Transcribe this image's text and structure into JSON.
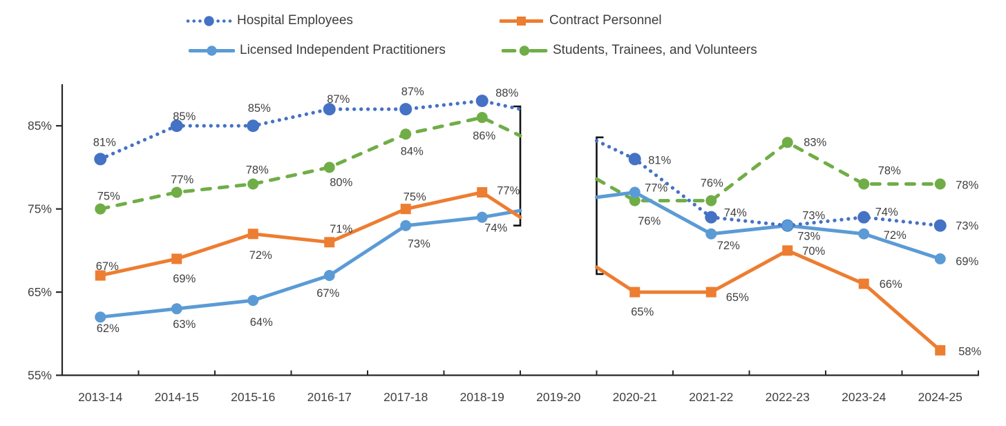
{
  "legend": {
    "items": [
      {
        "label": "Hospital Employees"
      },
      {
        "label": "Contract Personnel"
      },
      {
        "label": "Licensed Independent Practitioners"
      },
      {
        "label": "Students, Trainees, and Volunteers"
      }
    ]
  },
  "chart_data": {
    "type": "line",
    "title": "",
    "legend_position": "top",
    "grid": false,
    "categories": [
      "2013-14",
      "2014-15",
      "2015-16",
      "2016-17",
      "2017-18",
      "2018-19",
      "2019-20",
      "2020-21",
      "2021-22",
      "2022-23",
      "2023-24",
      "2024-25"
    ],
    "y_axis": {
      "tick_labels": [
        "85%",
        "75%",
        "65%",
        "55%"
      ],
      "tick_values": [
        85,
        75,
        65,
        55
      ],
      "range": [
        55,
        90
      ],
      "unit": "percent"
    },
    "data_break": {
      "category": "2019-20",
      "annotation": "square-brackets-marking-data-gap"
    },
    "series": [
      {
        "id": "hospital-employees",
        "name": "Hospital Employees",
        "color": "#4472C4",
        "line_style": "dotted",
        "marker": "circle",
        "values": [
          81,
          85,
          85,
          87,
          87,
          88,
          null,
          81,
          74,
          73,
          74,
          73
        ],
        "labels": [
          "81%",
          "85%",
          "85%",
          "87%",
          "87%",
          "88%",
          null,
          "81%",
          "74%",
          "73%",
          "74%",
          "73%"
        ],
        "label_offsets": [
          [
            6,
            -25
          ],
          [
            11,
            -14
          ],
          [
            9,
            -26
          ],
          [
            13,
            -15
          ],
          [
            10,
            -26
          ],
          [
            36,
            -12
          ],
          null,
          [
            36,
            1
          ],
          [
            35,
            -7
          ],
          [
            38,
            -15
          ],
          [
            33,
            -8
          ],
          [
            39,
            0
          ]
        ],
        "break_edge_values": {
          "left_end": 87,
          "right_start": 83.2
        }
      },
      {
        "id": "contract-personnel",
        "name": "Contract Personnel",
        "color": "#ED7D31",
        "line_style": "solid",
        "marker": "square",
        "values": [
          67,
          69,
          72,
          71,
          75,
          77,
          null,
          65,
          65,
          70,
          66,
          58
        ],
        "labels": [
          "67%",
          "69%",
          "72%",
          "71%",
          "75%",
          "77%",
          null,
          "65%",
          "65%",
          "70%",
          "66%",
          "58%"
        ],
        "label_offsets": [
          [
            10,
            -14
          ],
          [
            11,
            28
          ],
          [
            11,
            30
          ],
          [
            17,
            -20
          ],
          [
            13,
            -18
          ],
          [
            38,
            -3
          ],
          null,
          [
            11,
            28
          ],
          [
            38,
            7
          ],
          [
            38,
            0
          ],
          [
            39,
            0
          ],
          [
            43,
            1
          ]
        ],
        "break_edge_values": {
          "left_end": 74,
          "right_start": 68
        }
      },
      {
        "id": "licensed-independent-practitioners",
        "name": "Licensed Independent Practitioners",
        "color": "#5B9BD5",
        "line_style": "solid",
        "marker": "circle",
        "values": [
          62,
          63,
          64,
          67,
          73,
          74,
          null,
          77,
          72,
          73,
          72,
          69
        ],
        "labels": [
          "62%",
          "63%",
          "64%",
          "67%",
          "73%",
          "74%",
          null,
          "77%",
          "72%",
          "73%",
          "72%",
          "69%"
        ],
        "label_offsets": [
          [
            11,
            16
          ],
          [
            11,
            22
          ],
          [
            12,
            31
          ],
          [
            -2,
            25
          ],
          [
            19,
            26
          ],
          [
            20,
            15
          ],
          null,
          [
            31,
            -7
          ],
          [
            25,
            16
          ],
          [
            31,
            15
          ],
          [
            45,
            1
          ],
          [
            39,
            3
          ]
        ],
        "break_edge_values": {
          "left_end": 74.8,
          "right_start": 76.4
        }
      },
      {
        "id": "students-trainees-volunteers",
        "name": "Students, Trainees, and Volunteers",
        "color": "#70AD47",
        "line_style": "dashed",
        "marker": "circle",
        "values": [
          75,
          77,
          78,
          80,
          84,
          86,
          null,
          76,
          76,
          83,
          78,
          78
        ],
        "labels": [
          "75%",
          "77%",
          "78%",
          "80%",
          "84%",
          "86%",
          null,
          "76%",
          "76%",
          "83%",
          "78%",
          "78%"
        ],
        "label_offsets": [
          [
            12,
            -19
          ],
          [
            8,
            -19
          ],
          [
            6,
            -21
          ],
          [
            17,
            21
          ],
          [
            9,
            24
          ],
          [
            3,
            26
          ],
          null,
          [
            21,
            29
          ],
          [
            1,
            -26
          ],
          [
            40,
            -1
          ],
          [
            37,
            -20
          ],
          [
            39,
            1
          ]
        ],
        "break_edge_values": {
          "left_end": 83.8,
          "right_start": 78.6
        }
      }
    ]
  },
  "colors": {
    "axis": "#262626",
    "data_label_text": "#404040",
    "bracket": "#111111"
  }
}
